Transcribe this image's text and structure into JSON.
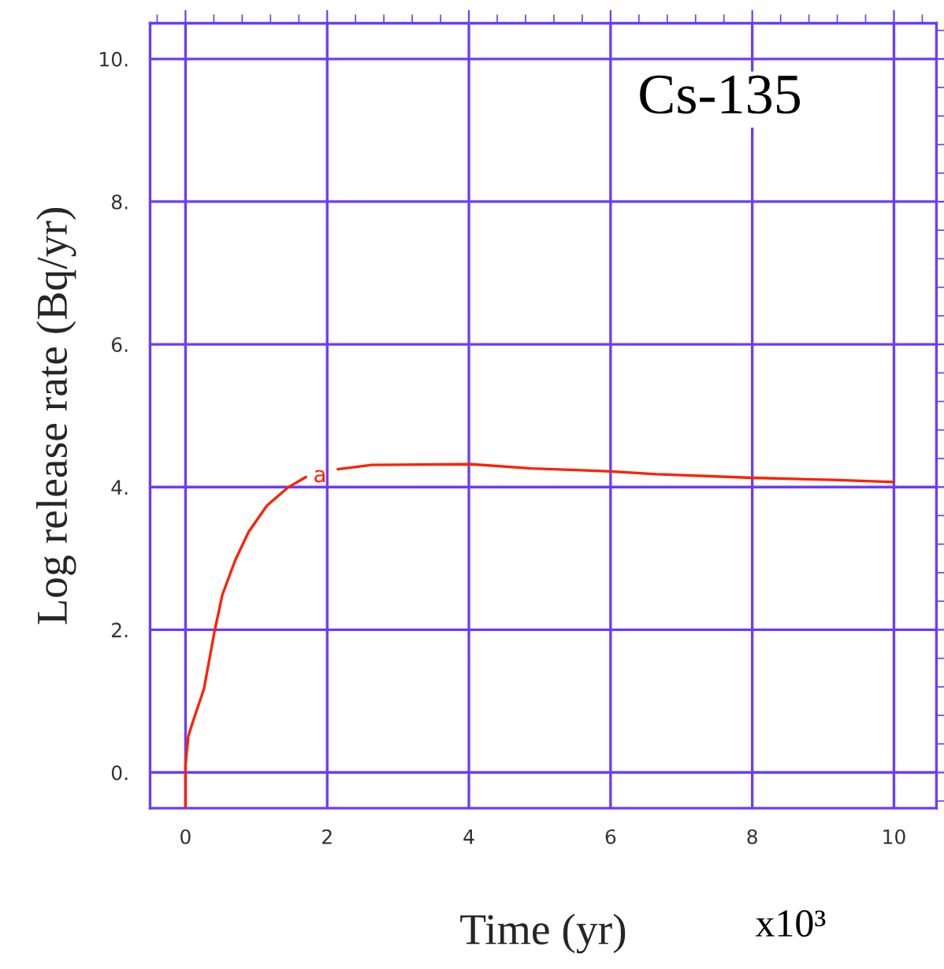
{
  "chart_data": {
    "type": "line",
    "xlabel": "Time (yr)",
    "ylabel": "Log release rate (Bq/yr)",
    "annotations": [
      "Cs-135",
      "x10³",
      "a"
    ],
    "series": [
      {
        "color": "#ff2000",
        "x": [
          0,
          0,
          0.04,
          0.11,
          0.26,
          0.41,
          0.52,
          0.7,
          0.89,
          1.15,
          1.44,
          1.7,
          1.9,
          2.15,
          2.63,
          4.03,
          4.89,
          6,
          6.64,
          8,
          9.14,
          10
        ],
        "values": [
          -0.5,
          0.11,
          0.51,
          0.73,
          1.17,
          1.98,
          2.49,
          2.97,
          3.37,
          3.74,
          3.99,
          4.14,
          null,
          4.25,
          4.31,
          4.32,
          4.26,
          4.22,
          4.18,
          4.13,
          4.1,
          4.07
        ]
      }
    ],
    "xlim": [
      -0.5,
      10.6
    ],
    "ylim": [
      -0.5,
      10.5
    ],
    "xticks": [
      0,
      2,
      4,
      6,
      8,
      10
    ],
    "yticks": [
      {
        "value": 0,
        "label": "0."
      },
      {
        "value": 2,
        "label": "2."
      },
      {
        "value": 4,
        "label": "4."
      },
      {
        "value": 6,
        "label": "6."
      },
      {
        "value": 8,
        "label": "8."
      },
      {
        "value": 10,
        "label": "10."
      }
    ],
    "grid": true,
    "legend": false,
    "marker": "none",
    "line_style": "solid"
  }
}
